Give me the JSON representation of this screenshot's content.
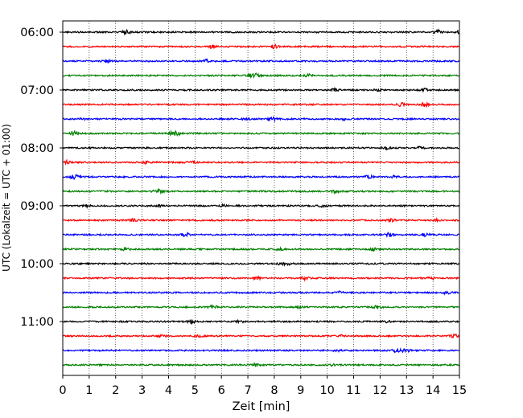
{
  "chart_data": {
    "type": "line",
    "title": "",
    "xlabel": "Zeit  [min]",
    "ylabel": "UTC (Lokalzeit = UTC + 01:00)",
    "xlim": [
      0,
      15
    ],
    "x_ticks": [
      "0",
      "1",
      "2",
      "3",
      "4",
      "5",
      "6",
      "7",
      "8",
      "9",
      "10",
      "11",
      "12",
      "13",
      "14",
      "15"
    ],
    "y_ticks": [
      "06:00",
      "07:00",
      "08:00",
      "09:00",
      "10:00",
      "11:00"
    ],
    "grid": "vertical dotted at each minute",
    "trace_interval_min": 15,
    "start_time": "06:00",
    "trace_colors": [
      "#000000",
      "#ff0000",
      "#0000ff",
      "#008000"
    ],
    "series": [
      {
        "time": "06:00",
        "color": "#000000"
      },
      {
        "time": "06:15",
        "color": "#ff0000"
      },
      {
        "time": "06:30",
        "color": "#0000ff"
      },
      {
        "time": "06:45",
        "color": "#008000"
      },
      {
        "time": "07:00",
        "color": "#000000"
      },
      {
        "time": "07:15",
        "color": "#ff0000"
      },
      {
        "time": "07:30",
        "color": "#0000ff"
      },
      {
        "time": "07:45",
        "color": "#008000"
      },
      {
        "time": "08:00",
        "color": "#000000"
      },
      {
        "time": "08:15",
        "color": "#ff0000"
      },
      {
        "time": "08:30",
        "color": "#0000ff"
      },
      {
        "time": "08:45",
        "color": "#008000"
      },
      {
        "time": "09:00",
        "color": "#000000"
      },
      {
        "time": "09:15",
        "color": "#ff0000"
      },
      {
        "time": "09:30",
        "color": "#0000ff"
      },
      {
        "time": "09:45",
        "color": "#008000"
      },
      {
        "time": "10:00",
        "color": "#000000"
      },
      {
        "time": "10:15",
        "color": "#ff0000"
      },
      {
        "time": "10:30",
        "color": "#0000ff"
      },
      {
        "time": "10:45",
        "color": "#008000"
      },
      {
        "time": "11:00",
        "color": "#000000"
      },
      {
        "time": "11:15",
        "color": "#ff0000"
      },
      {
        "time": "11:30",
        "color": "#0000ff"
      },
      {
        "time": "11:45",
        "color": "#008000"
      }
    ]
  }
}
